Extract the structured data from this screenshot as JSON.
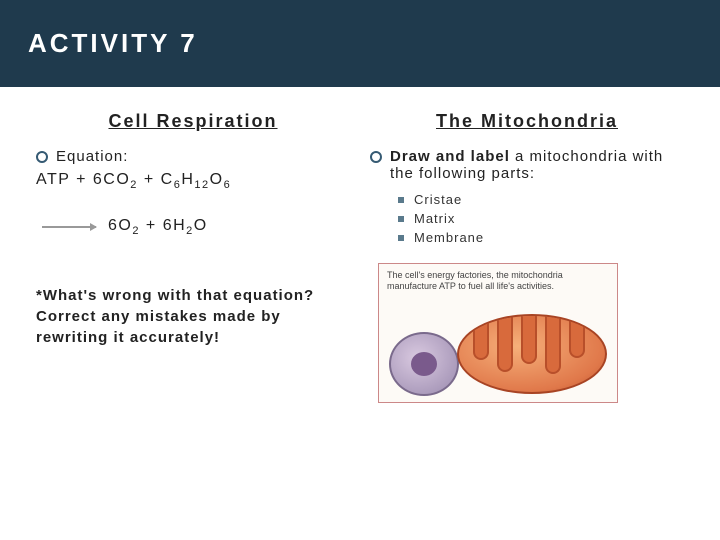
{
  "header": {
    "title": "ACTIVITY 7"
  },
  "left": {
    "title": "Cell Respiration",
    "equation_label": "Equation:",
    "eq_line1_parts": {
      "p1": "ATP + 6CO",
      "s1": "2",
      "p2": "  + C",
      "s2": "6",
      "p3": "H",
      "s3": "12",
      "p4": "O",
      "s4": "6"
    },
    "eq_line2_parts": {
      "p1": "6O",
      "s1": "2",
      "p2": " + 6H",
      "s2": "2",
      "p3": "O"
    },
    "note": "*What's wrong with that equation?  Correct any mistakes made by rewriting it accurately!"
  },
  "right": {
    "title": "The Mitochondria",
    "draw_bold": "Draw and label",
    "draw_rest": " a mitochondria with the following parts:",
    "parts": [
      "Cristae",
      "Matrix",
      "Membrane"
    ],
    "caption": "The cell's energy factories, the mitochondria manufacture ATP to fuel all life's activities."
  },
  "style": {
    "header_bg": "#1f3a4d",
    "header_color": "#ffffff",
    "ring_border": "#355a73",
    "square_color": "#5a7a8c",
    "mito_outer": "#b84f2a",
    "mito_fill1": "#f6b07a",
    "mito_fill2": "#e0784a",
    "cell_fill1": "#d9c9e0",
    "cell_fill2": "#9a8aae"
  }
}
